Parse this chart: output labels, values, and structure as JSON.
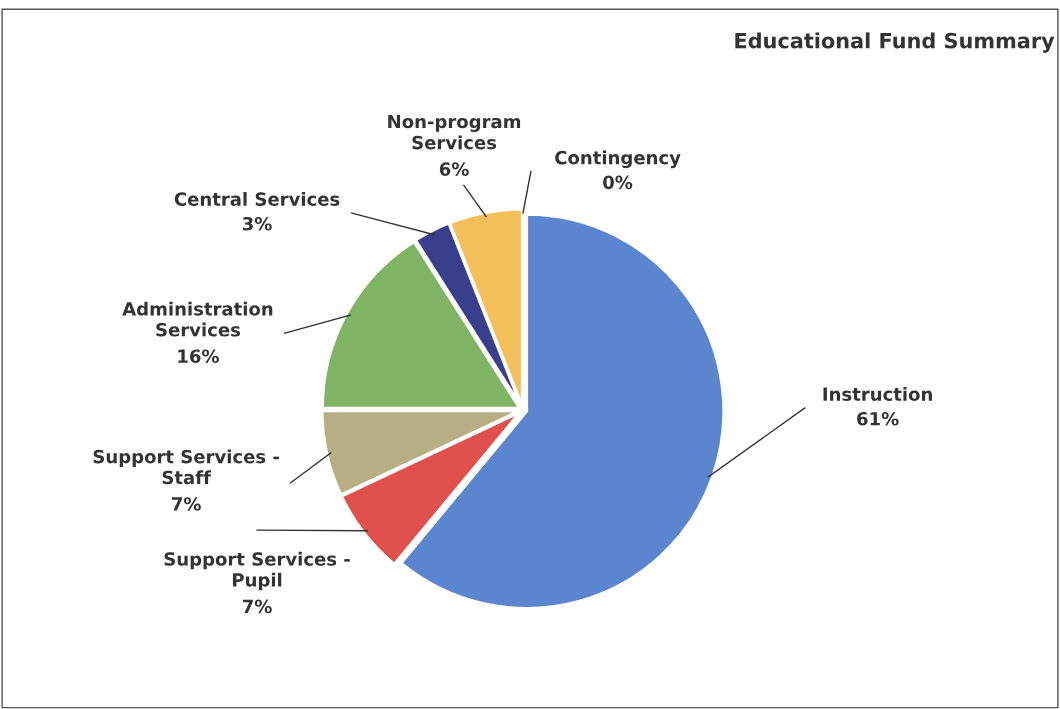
{
  "chart_data": {
    "type": "pie",
    "title": "Educational Fund Summary",
    "categories": [
      "Instruction",
      "Support Services -\nPupil",
      "Support Services -\nStaff",
      "Administration\nServices",
      "Central Services",
      "Non-program\nServices",
      "Contingency"
    ],
    "values": [
      61,
      7,
      7,
      16,
      3,
      6,
      0
    ],
    "colors": [
      "#5b86cf",
      "#e0504c",
      "#b8ae84",
      "#7fb464",
      "#3a3f8c",
      "#f5c05a",
      "#8c8c8c"
    ],
    "value_labels": [
      "61%",
      "7%",
      "7%",
      "16%",
      "3%",
      "6%",
      "0%"
    ],
    "legend": false
  }
}
